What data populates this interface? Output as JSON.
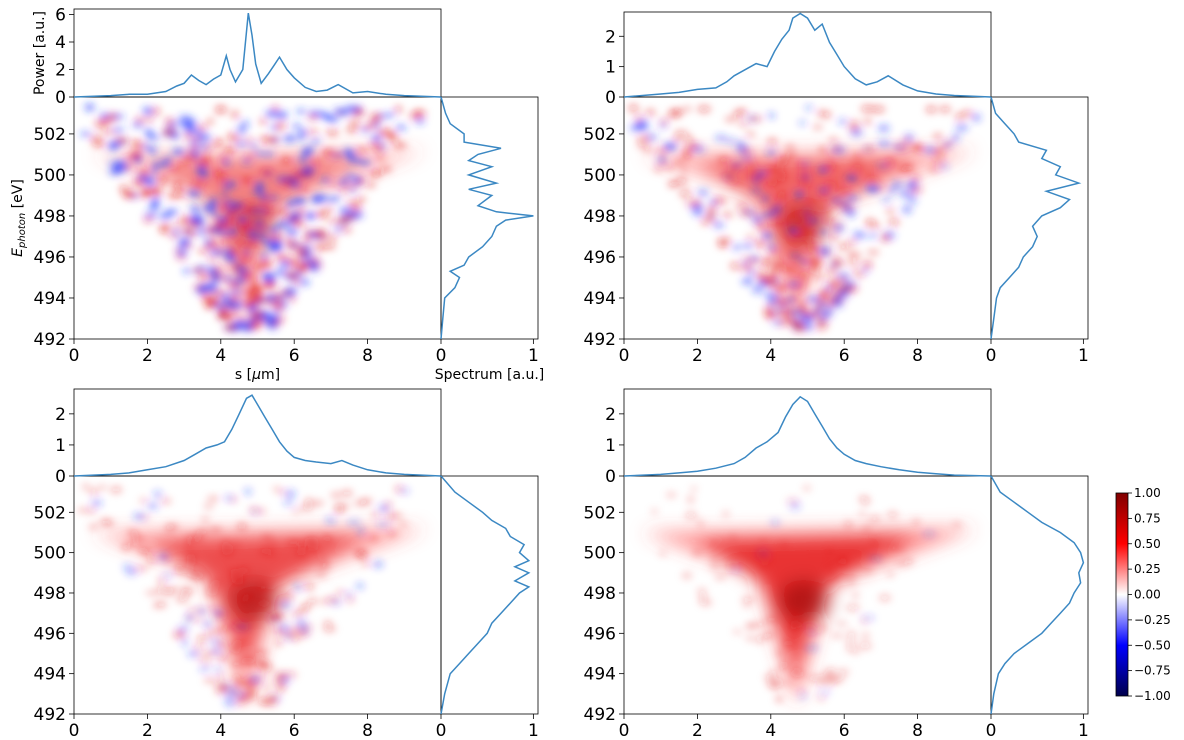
{
  "chart_data": [
    {
      "type": "heatmap",
      "panel": "top-left",
      "xlabel": "s [$\\mu$m]",
      "ylabel": "E_photon [eV]",
      "xlim": [
        0,
        10
      ],
      "ylim": [
        492,
        503.8
      ],
      "xticks": [
        "0",
        "2",
        "4",
        "6",
        "8"
      ],
      "yticks": [
        "492",
        "494",
        "496",
        "498",
        "500",
        "502"
      ],
      "power": {
        "ylabel": "Power [a.u.]",
        "yticks": [
          "0",
          "2",
          "4",
          "6"
        ],
        "ylim": [
          0,
          6.4
        ],
        "x": [
          0,
          1.0,
          1.5,
          2.0,
          2.5,
          2.8,
          3.0,
          3.2,
          3.4,
          3.6,
          3.8,
          4.0,
          4.15,
          4.25,
          4.4,
          4.6,
          4.75,
          4.85,
          4.95,
          5.1,
          5.3,
          5.45,
          5.6,
          5.8,
          6.0,
          6.3,
          6.6,
          6.9,
          7.2,
          7.6,
          8.0,
          8.5,
          9.0,
          10.0
        ],
        "y": [
          0,
          0.1,
          0.2,
          0.2,
          0.4,
          0.8,
          1.0,
          1.6,
          1.2,
          0.9,
          1.3,
          1.6,
          3.0,
          2.0,
          1.1,
          2.0,
          6.1,
          4.5,
          2.4,
          1.0,
          1.7,
          2.3,
          2.9,
          2.0,
          1.4,
          0.7,
          0.4,
          0.5,
          0.9,
          0.3,
          0.4,
          0.2,
          0.1,
          0
        ]
      },
      "spectrum": {
        "xlabel": "Spectrum [a.u.]",
        "xticks": [
          "0",
          "1"
        ],
        "xlim": [
          0,
          1.05
        ],
        "e": [
          492,
          493,
          494,
          494.5,
          495,
          495.3,
          495.6,
          496,
          496.5,
          497,
          497.5,
          497.8,
          498.0,
          498.2,
          498.5,
          499,
          499.3,
          499.6,
          500,
          500.4,
          500.7,
          501,
          501.3,
          501.6,
          502,
          502.5,
          503,
          503.8
        ],
        "v": [
          0,
          0.02,
          0.04,
          0.15,
          0.2,
          0.1,
          0.25,
          0.3,
          0.45,
          0.55,
          0.6,
          0.7,
          1.0,
          0.6,
          0.4,
          0.55,
          0.3,
          0.6,
          0.3,
          0.55,
          0.3,
          0.4,
          0.65,
          0.25,
          0.25,
          0.1,
          0.05,
          0
        ]
      }
    },
    {
      "type": "heatmap",
      "panel": "top-right",
      "xlim": [
        0,
        10
      ],
      "ylim": [
        492,
        503.8
      ],
      "xticks": [
        "0",
        "2",
        "4",
        "6",
        "8"
      ],
      "yticks": [
        "492",
        "494",
        "496",
        "498",
        "500",
        "502"
      ],
      "power": {
        "yticks": [
          "0",
          "1",
          "2"
        ],
        "ylim": [
          0,
          2.8
        ],
        "x": [
          0,
          1.0,
          1.5,
          2.0,
          2.5,
          2.8,
          3.0,
          3.3,
          3.6,
          3.9,
          4.1,
          4.3,
          4.5,
          4.6,
          4.8,
          5.0,
          5.2,
          5.4,
          5.6,
          5.8,
          6.0,
          6.3,
          6.6,
          6.9,
          7.2,
          7.6,
          8.0,
          8.5,
          9.0,
          10.0
        ],
        "y": [
          0,
          0.1,
          0.15,
          0.25,
          0.3,
          0.5,
          0.7,
          0.9,
          1.1,
          1.0,
          1.5,
          1.9,
          2.2,
          2.6,
          2.75,
          2.6,
          2.2,
          2.4,
          1.8,
          1.4,
          1.0,
          0.6,
          0.4,
          0.5,
          0.7,
          0.4,
          0.2,
          0.1,
          0.05,
          0
        ]
      },
      "spectrum": {
        "xticks": [
          "0",
          "1"
        ],
        "xlim": [
          0,
          1.05
        ],
        "e": [
          492,
          493,
          494,
          494.5,
          495,
          495.5,
          496,
          496.5,
          497,
          497.5,
          498,
          498.4,
          498.8,
          499.2,
          499.6,
          500,
          500.4,
          500.8,
          501.2,
          501.6,
          502,
          502.5,
          503,
          503.8
        ],
        "v": [
          0,
          0.03,
          0.06,
          0.1,
          0.2,
          0.3,
          0.35,
          0.45,
          0.5,
          0.45,
          0.55,
          0.75,
          0.85,
          0.6,
          0.95,
          0.7,
          0.75,
          0.55,
          0.6,
          0.3,
          0.25,
          0.15,
          0.05,
          0
        ]
      }
    },
    {
      "type": "heatmap",
      "panel": "bottom-left",
      "xlim": [
        0,
        10
      ],
      "ylim": [
        492,
        503.8
      ],
      "xticks": [
        "0",
        "2",
        "4",
        "6",
        "8"
      ],
      "yticks": [
        "492",
        "494",
        "496",
        "498",
        "500",
        "502"
      ],
      "power": {
        "yticks": [
          "0",
          "1",
          "2"
        ],
        "ylim": [
          0,
          2.8
        ],
        "x": [
          0,
          1.0,
          1.5,
          2.0,
          2.5,
          3.0,
          3.3,
          3.6,
          3.9,
          4.1,
          4.3,
          4.5,
          4.7,
          4.85,
          5.0,
          5.2,
          5.4,
          5.6,
          5.8,
          6.0,
          6.3,
          6.6,
          7.0,
          7.3,
          7.6,
          8.0,
          8.5,
          9.0,
          10.0
        ],
        "y": [
          0,
          0.05,
          0.1,
          0.2,
          0.3,
          0.5,
          0.7,
          0.9,
          1.0,
          1.1,
          1.5,
          2.0,
          2.5,
          2.6,
          2.3,
          1.9,
          1.5,
          1.1,
          0.8,
          0.6,
          0.5,
          0.45,
          0.4,
          0.5,
          0.35,
          0.2,
          0.1,
          0.05,
          0
        ]
      },
      "spectrum": {
        "xticks": [
          "0",
          "1"
        ],
        "xlim": [
          0,
          1.05
        ],
        "e": [
          492,
          493,
          494,
          494.5,
          495,
          495.5,
          496,
          496.5,
          497,
          497.5,
          498,
          498.3,
          498.6,
          499,
          499.3,
          499.6,
          500,
          500.4,
          500.8,
          501.2,
          501.6,
          502,
          502.5,
          503,
          503.8
        ],
        "v": [
          0,
          0.04,
          0.1,
          0.2,
          0.3,
          0.4,
          0.5,
          0.55,
          0.65,
          0.75,
          0.85,
          0.95,
          0.8,
          0.95,
          0.8,
          0.95,
          0.85,
          0.9,
          0.75,
          0.7,
          0.55,
          0.45,
          0.3,
          0.15,
          0
        ]
      }
    },
    {
      "type": "heatmap",
      "panel": "bottom-right",
      "xlim": [
        0,
        10
      ],
      "ylim": [
        492,
        503.8
      ],
      "xticks": [
        "0",
        "2",
        "4",
        "6",
        "8"
      ],
      "yticks": [
        "492",
        "494",
        "496",
        "498",
        "500",
        "502"
      ],
      "power": {
        "yticks": [
          "0",
          "1",
          "2"
        ],
        "ylim": [
          0,
          2.8
        ],
        "x": [
          0,
          1.0,
          1.5,
          2.0,
          2.5,
          3.0,
          3.3,
          3.6,
          3.9,
          4.2,
          4.4,
          4.6,
          4.8,
          5.0,
          5.2,
          5.4,
          5.6,
          5.8,
          6.0,
          6.3,
          6.6,
          7.0,
          7.5,
          8.0,
          8.5,
          9.0,
          10.0
        ],
        "y": [
          0,
          0.05,
          0.1,
          0.15,
          0.25,
          0.4,
          0.6,
          0.9,
          1.1,
          1.4,
          1.9,
          2.3,
          2.55,
          2.4,
          2.0,
          1.6,
          1.2,
          0.9,
          0.7,
          0.5,
          0.4,
          0.3,
          0.2,
          0.12,
          0.07,
          0.03,
          0
        ]
      },
      "spectrum": {
        "xticks": [
          "0",
          "1"
        ],
        "xlim": [
          0,
          1.05
        ],
        "e": [
          492,
          493,
          494,
          494.5,
          495,
          495.5,
          496,
          496.5,
          497,
          497.5,
          498,
          498.5,
          499,
          499.5,
          500,
          500.5,
          501,
          501.5,
          502,
          502.5,
          503,
          503.8
        ],
        "v": [
          0,
          0.03,
          0.08,
          0.15,
          0.25,
          0.4,
          0.55,
          0.65,
          0.75,
          0.85,
          0.9,
          0.97,
          0.95,
          1.0,
          0.97,
          0.9,
          0.75,
          0.55,
          0.4,
          0.25,
          0.1,
          0
        ]
      }
    }
  ],
  "colorbar": {
    "ticks": [
      "1.00",
      "0.75",
      "0.50",
      "0.25",
      "0.00",
      "−0.25",
      "−0.50",
      "−0.75",
      "−1.00"
    ],
    "range": [
      -1,
      1
    ],
    "cmap": "seismic",
    "colors": [
      "#00004c",
      "#0000ff",
      "#ffffff",
      "#ff0000",
      "#800000"
    ]
  },
  "line_color": "#3b88c3"
}
